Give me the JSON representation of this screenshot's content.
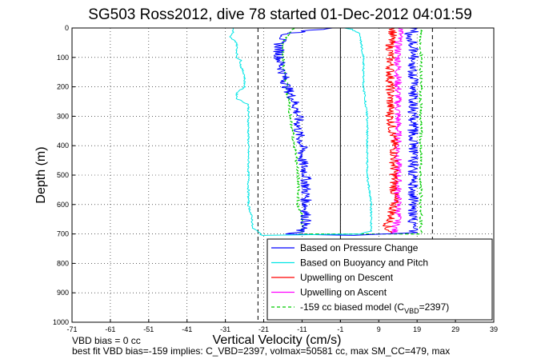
{
  "chart_data": {
    "type": "line",
    "title": "SG503 Ross2012, dive 78 started 01-Dec-2012 04:01:59",
    "xlabel": "Vertical Velocity (cm/s)",
    "ylabel": "Depth (m)",
    "xlim": [
      -71,
      39
    ],
    "ylim": [
      0,
      1000
    ],
    "y_reversed": true,
    "xticks": [
      -71,
      -61,
      -51,
      -41,
      -31,
      -21,
      -11,
      -1,
      9,
      19,
      29,
      39
    ],
    "yticks": [
      0,
      100,
      200,
      300,
      400,
      500,
      600,
      700,
      800,
      900,
      1000
    ],
    "grid": true,
    "legend_position": "lower-right",
    "reference_lines": {
      "dashed_x": [
        -22.5,
        23
      ],
      "solid_x": [
        -1
      ]
    },
    "series": [
      {
        "name": "Based on Pressure Change",
        "color": "#0000ff",
        "style": "solid",
        "depth": [
          0,
          10,
          20,
          50,
          100,
          150,
          200,
          250,
          300,
          350,
          400,
          450,
          500,
          550,
          600,
          640,
          660,
          680,
          695,
          700,
          705,
          695,
          680,
          650,
          600,
          550,
          500,
          450,
          400,
          350,
          300,
          250,
          200,
          150,
          100,
          50,
          20,
          5,
          0
        ],
        "velocity": [
          -2,
          -10,
          -15,
          -17,
          -17,
          -16,
          -15,
          -13,
          -12,
          -12,
          -11,
          -11,
          -10,
          -10,
          -10,
          -10,
          -10,
          -11,
          -12,
          -15,
          2,
          18,
          18,
          18,
          18,
          18,
          18,
          18,
          18,
          18,
          18,
          18,
          18,
          18,
          18,
          18,
          17,
          19,
          17
        ]
      },
      {
        "name": "Based on Buoyancy and Pitch",
        "color": "#00e5e5",
        "style": "solid",
        "depth": [
          0,
          15,
          30,
          50,
          70,
          100,
          110,
          130,
          160,
          200,
          220,
          240,
          260,
          290,
          310,
          400,
          500,
          600,
          650,
          680,
          695,
          702,
          705,
          700,
          690,
          600,
          500,
          400,
          300,
          200,
          100,
          20,
          5,
          0
        ],
        "velocity": [
          -29,
          -29,
          -30,
          -28,
          -28,
          -28,
          -27,
          -27,
          -26,
          -26,
          -28,
          -28,
          -25,
          -25,
          -25,
          -25,
          -25,
          -25,
          -24,
          -24,
          -22,
          -22,
          -21,
          4,
          7,
          7,
          6,
          6,
          6,
          5,
          5,
          4,
          2,
          0
        ]
      },
      {
        "name": "Upwelling on Descent",
        "color": "#ff0000",
        "style": "solid",
        "depth": [
          0,
          50,
          100,
          200,
          300,
          400,
          500,
          600,
          650,
          680,
          690,
          700
        ],
        "velocity": [
          13,
          12,
          12,
          12,
          12,
          13,
          13,
          13,
          12,
          11,
          12,
          12
        ]
      },
      {
        "name": "Upwelling on Ascent",
        "color": "#ff00ff",
        "style": "solid",
        "depth": [
          0,
          50,
          100,
          200,
          300,
          400,
          500,
          600,
          650,
          690,
          700
        ],
        "velocity": [
          15,
          14,
          14,
          14,
          14,
          14,
          14,
          14,
          14,
          13,
          13
        ]
      },
      {
        "name": "-159 cc biased model (C_VBD=2397)",
        "color": "#00cc00",
        "style": "dashed",
        "depth": [
          0,
          50,
          100,
          200,
          300,
          400,
          500,
          600,
          650,
          690,
          700,
          700,
          690,
          650,
          600,
          500,
          400,
          300,
          200,
          100,
          50,
          0
        ],
        "velocity": [
          -13,
          -16,
          -16,
          -15,
          -14,
          -13,
          -12,
          -12,
          -11,
          -11,
          -12,
          20,
          20,
          20,
          20,
          20,
          20,
          20,
          20,
          20,
          20,
          20
        ]
      }
    ]
  },
  "legend_label_parts": {
    "model_prefix": "-159 cc biased model (C",
    "model_sub": "VBD",
    "model_suffix": "=2397)"
  },
  "footer": {
    "line1": "VBD bias = 0 cc",
    "line2": "best fit VBD bias=-159 implies: C_VBD=2397, volmax=50581 cc, max SM_CC=479, max"
  }
}
